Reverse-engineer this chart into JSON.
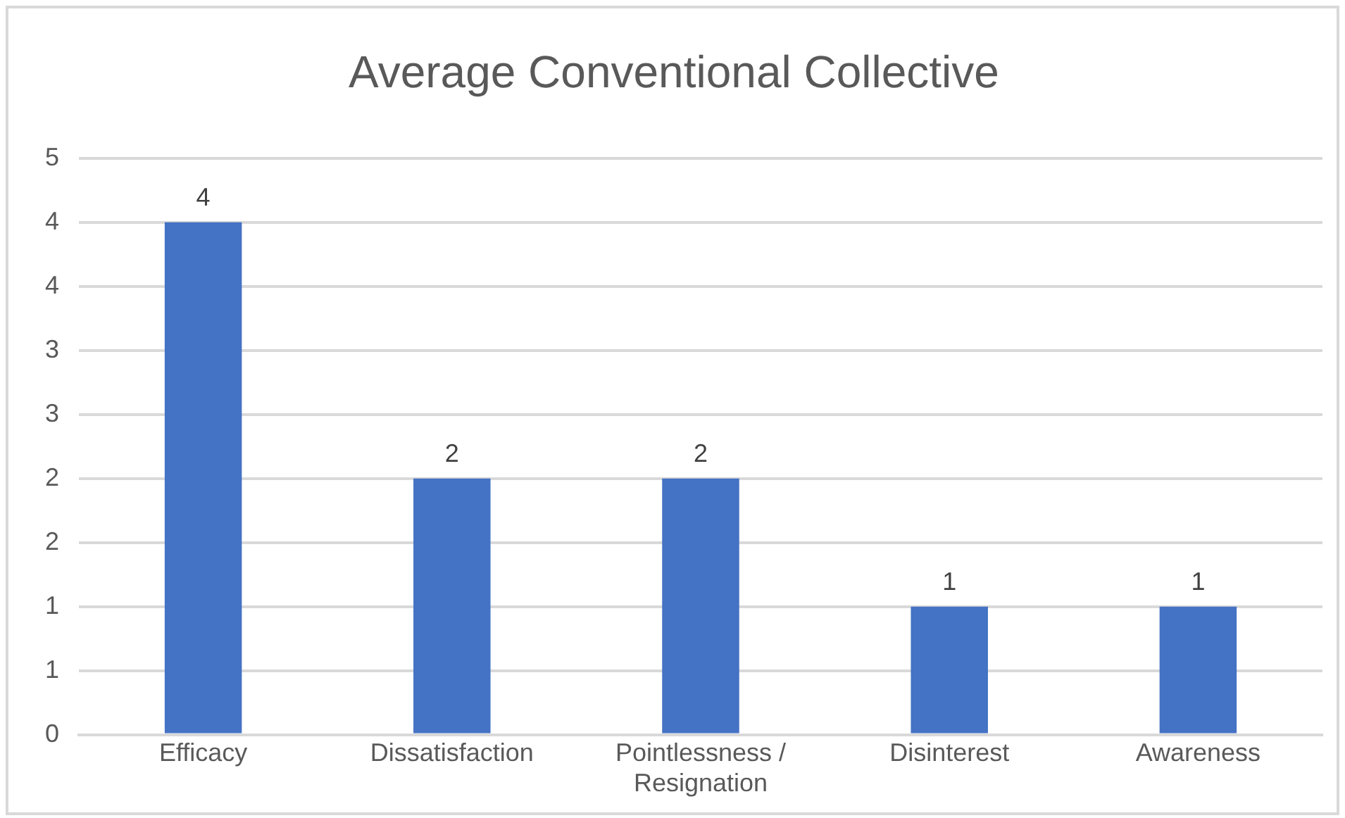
{
  "chart_data": {
    "type": "bar",
    "title": "Average Conventional Collective",
    "categories": [
      "Efficacy",
      "Dissatisfaction",
      "Pointlessness / Resignation",
      "Disinterest",
      "Awareness"
    ],
    "values": [
      4,
      2,
      2,
      1,
      1
    ],
    "color": "#4472c4",
    "ylim": [
      0,
      4.5
    ],
    "yticks": [
      0,
      {
        "value": 0.5,
        "label": "1"
      },
      1,
      {
        "value": 1.5,
        "label": "2"
      },
      2,
      {
        "value": 2.5,
        "label": "3"
      },
      3,
      {
        "value": 3.5,
        "label": "4"
      },
      4,
      {
        "value": 4.5,
        "label": "5"
      }
    ],
    "grid": "y",
    "data_labels": true,
    "legend": false
  }
}
